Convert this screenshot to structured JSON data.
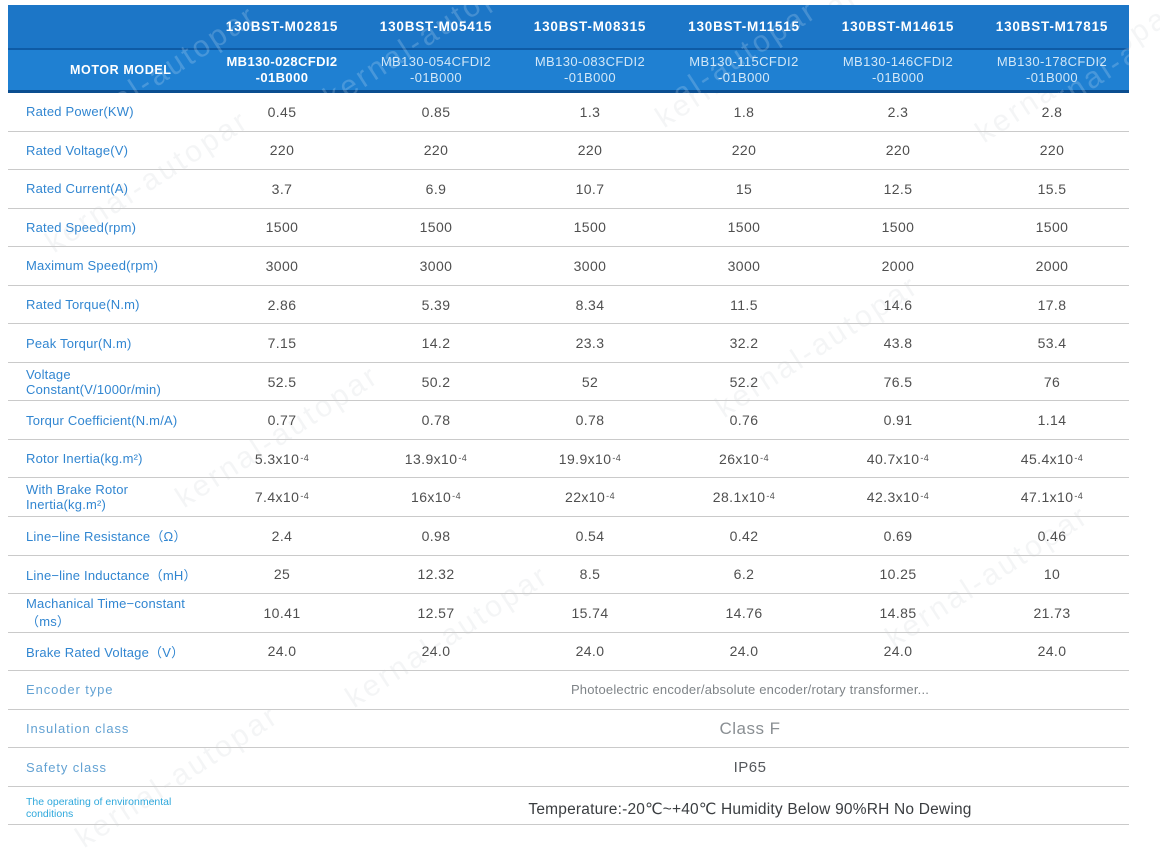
{
  "watermark": "kernal-autopar",
  "header": {
    "row_label": "MOTOR MODEL",
    "models": [
      "130BST-M02815",
      "130BST-M05415",
      "130BST-M08315",
      "130BST-M11515",
      "130BST-M14615",
      "130BST-M17815"
    ],
    "sub_models": [
      "MB130-028CFDI2\n-01B000",
      "MB130-054CFDI2\n-01B000",
      "MB130-083CFDI2\n-01B000",
      "MB130-115CFDI2\n-01B000",
      "MB130-146CFDI2\n-01B000",
      "MB130-178CFDI2\n-01B000"
    ]
  },
  "table": {
    "rows": [
      {
        "label": "Rated Power(KW)",
        "values": [
          "0.45",
          "0.85",
          "1.3",
          "1.8",
          "2.3",
          "2.8"
        ]
      },
      {
        "label": "Rated Voltage(V)",
        "values": [
          "220",
          "220",
          "220",
          "220",
          "220",
          "220"
        ]
      },
      {
        "label": "Rated Current(A)",
        "values": [
          "3.7",
          "6.9",
          "10.7",
          "15",
          "12.5",
          "15.5"
        ]
      },
      {
        "label": "Rated Speed(rpm)",
        "values": [
          "1500",
          "1500",
          "1500",
          "1500",
          "1500",
          "1500"
        ]
      },
      {
        "label": "Maximum Speed(rpm)",
        "values": [
          "3000",
          "3000",
          "3000",
          "3000",
          "2000",
          "2000"
        ]
      },
      {
        "label": "Rated Torque(N.m)",
        "values": [
          "2.86",
          "5.39",
          "8.34",
          "11.5",
          "14.6",
          "17.8"
        ]
      },
      {
        "label": "Peak Torqur(N.m)",
        "values": [
          "7.15",
          "14.2",
          "23.3",
          "32.2",
          "43.8",
          "53.4"
        ]
      },
      {
        "label": "Voltage Constant(V/1000r/min)",
        "values": [
          "52.5",
          "50.2",
          "52",
          "52.2",
          "76.5",
          "76"
        ]
      },
      {
        "label": "Torqur Coefficient(N.m/A)",
        "values": [
          "0.77",
          "0.78",
          "0.78",
          "0.76",
          "0.91",
          "1.14"
        ]
      },
      {
        "label": "Rotor Inertia(kg.m²)",
        "values": [
          "5.3x10^-4",
          "13.9x10^-4",
          "19.9x10^-4",
          "26x10^-4",
          "40.7x10^-4",
          "45.4x10^-4"
        ]
      },
      {
        "label": "With Brake Rotor Inertia(kg.m²)",
        "values": [
          "7.4x10^-4",
          "16x10^-4",
          "22x10^-4",
          "28.1x10^-4",
          "42.3x10^-4",
          "47.1x10^-4"
        ]
      },
      {
        "label": "Line−line Resistance（Ω）",
        "values": [
          "2.4",
          "0.98",
          "0.54",
          "0.42",
          "0.69",
          "0.46"
        ]
      },
      {
        "label": "Line−line Inductance（mH）",
        "values": [
          "25",
          "12.32",
          "8.5",
          "6.2",
          "10.25",
          "10"
        ]
      },
      {
        "label": "Machanical Time−constant（ms）",
        "values": [
          "10.41",
          "12.57",
          "15.74",
          "14.76",
          "14.85",
          "21.73"
        ]
      },
      {
        "label": "Brake Rated Voltage（V）",
        "values": [
          "24.0",
          "24.0",
          "24.0",
          "24.0",
          "24.0",
          "24.0"
        ]
      },
      {
        "label": "Encoder type",
        "label_style": "lite",
        "merged": "Photoelectric encoder/absolute encoder/rotary transformer...",
        "merged_style": "encoder"
      },
      {
        "label": "Insulation class",
        "label_style": "lite",
        "merged": "Class F",
        "merged_style": "classf"
      },
      {
        "label": "Safety class",
        "label_style": "lite",
        "merged": "IP65",
        "merged_style": "ip"
      },
      {
        "label": "The operating of environmental conditions",
        "label_style": "env",
        "merged": "Temperature:-20℃~+40℃  Humidity Below 90%RH No Dewing",
        "merged_style": "env"
      }
    ]
  }
}
